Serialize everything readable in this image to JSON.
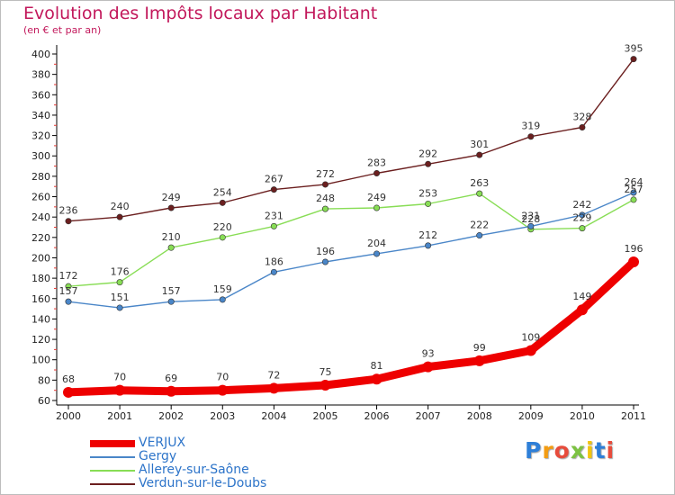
{
  "chart_data": {
    "type": "line",
    "title": "Evolution des Impôts locaux par Habitant",
    "subtitle": "(en € et par an)",
    "xlabel": "",
    "ylabel": "",
    "categories": [
      "2000",
      "2001",
      "2002",
      "2003",
      "2004",
      "2005",
      "2006",
      "2007",
      "2008",
      "2009",
      "2010",
      "2011"
    ],
    "ylim": [
      60,
      400
    ],
    "ytick_step": 20,
    "grid": false,
    "legend_position": "bottom-left",
    "series": [
      {
        "name": "VERJUX",
        "color": "#ee0000",
        "values": [
          68,
          70,
          69,
          70,
          72,
          75,
          81,
          93,
          99,
          109,
          149,
          196
        ]
      },
      {
        "name": "Gergy",
        "color": "#4a86c8",
        "values": [
          157,
          151,
          157,
          159,
          186,
          196,
          204,
          212,
          222,
          231,
          242,
          264
        ]
      },
      {
        "name": "Allerey-sur-Saône",
        "color": "#88dd55",
        "values": [
          172,
          176,
          210,
          220,
          231,
          248,
          249,
          253,
          263,
          228,
          229,
          257
        ]
      },
      {
        "name": "Verdun-sur-le-Doubs",
        "color": "#6b1f1f",
        "values": [
          236,
          240,
          249,
          254,
          267,
          272,
          283,
          292,
          301,
          319,
          328,
          395
        ]
      }
    ]
  },
  "brand": {
    "letters": [
      {
        "ch": "P",
        "color": "#2e7fd8"
      },
      {
        "ch": "r",
        "color": "#f39c12"
      },
      {
        "ch": "o",
        "color": "#e74c3c"
      },
      {
        "ch": "x",
        "color": "#7cc242"
      },
      {
        "ch": "i",
        "color": "#f1c40f"
      },
      {
        "ch": "t",
        "color": "#2e7fd8"
      },
      {
        "ch": "i",
        "color": "#e74c3c"
      }
    ]
  }
}
